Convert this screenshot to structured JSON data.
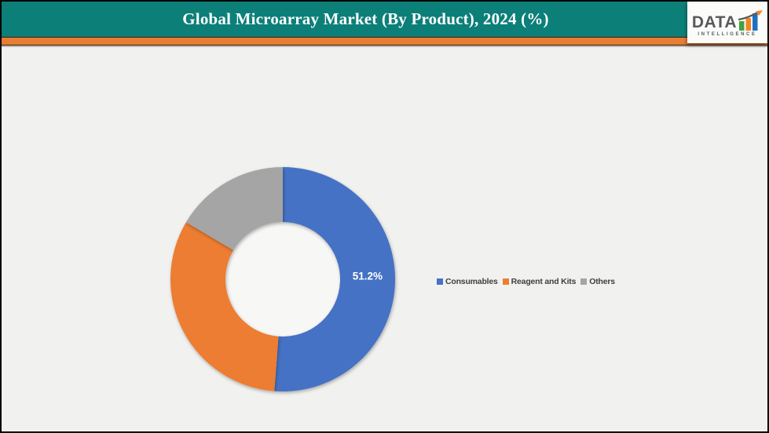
{
  "frame": {
    "background": "#F1F1F0",
    "border_color": "#000000"
  },
  "header": {
    "title": "Global Microarray Market (By Product), 2024 (%)",
    "background_color": "#0C7F79",
    "title_color": "#FFFFFF",
    "accent_bar_color": "#E87D33",
    "accent_bar_edge_color": "#42210B"
  },
  "logo": {
    "word": "DATA",
    "subword": "INTELLIGENCE",
    "word_color": "#58595B",
    "bar_colors": [
      "#3FA43B",
      "#F58426",
      "#1E6FBF"
    ],
    "arrow_color": "#58595B",
    "arrowhead_color": "#F58426",
    "box_background": "#FBFBFA"
  },
  "chart_data": {
    "type": "donut",
    "title": "Global Microarray Market (By Product), 2024 (%)",
    "segments": [
      {
        "label": "Consumables",
        "value": 51.2,
        "color": "#4472C4",
        "data_label": "51.2%"
      },
      {
        "label": "Reagent and Kits",
        "value": 32.3,
        "color": "#ED7D31",
        "data_label": ""
      },
      {
        "label": "Others",
        "value": 16.5,
        "color": "#A5A5A5",
        "data_label": ""
      }
    ],
    "start_angle_deg": 0,
    "inner_radius_ratio": 0.51,
    "hole_color": "#F7F7F6",
    "data_label_color": "#FFFFFF",
    "legend_position": "right-middle",
    "legend_text_color": "#3F3F3F"
  }
}
